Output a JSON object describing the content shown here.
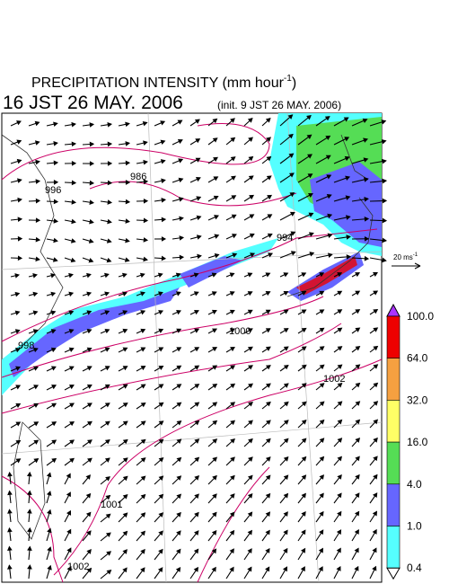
{
  "title": {
    "main": "PRECIPITATION INTENSITY (mm hour",
    "superscript": "-1",
    "close": ")"
  },
  "valid_time": "16 JST 26 MAY. 2006",
  "init_time": "(init. 9 JST 26 MAY. 2006)",
  "wind_scale": {
    "text": "20 ms",
    "superscript": "-1"
  },
  "isobar_labels": [
    "986",
    "996",
    "994",
    "998",
    "1000",
    "1002",
    "1001",
    "1002"
  ],
  "colorbar": {
    "labels": [
      "100.0",
      "64.0",
      "32.0",
      "16.0",
      "4.0",
      "1.0",
      "0.4"
    ],
    "colors": [
      "#ee0000",
      "#f5a040",
      "#ffff66",
      "#55dd55",
      "#6666ff",
      "#55ffff"
    ],
    "over_color": "#aa33ff",
    "under_color": "#ffffff"
  }
}
